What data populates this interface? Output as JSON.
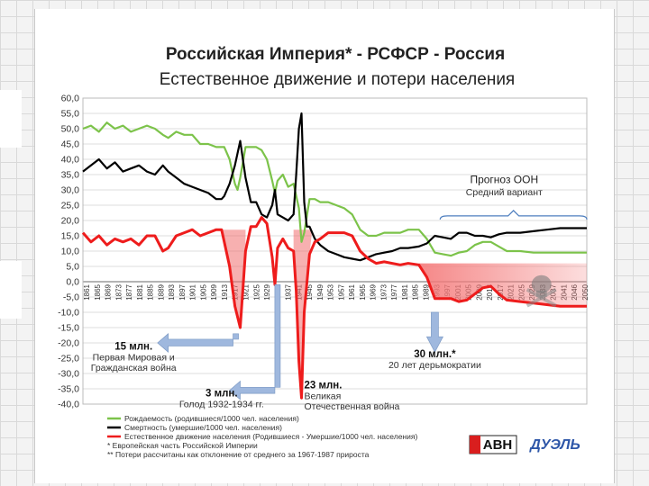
{
  "title": "Российская Империя* - РСФСР - Россия",
  "subtitle": "Естественное движение и потери населения",
  "colors": {
    "births": "#7cc34a",
    "deaths": "#000000",
    "natural": "#ee1c1c",
    "loss": "#f06464",
    "arrow": "#9fb8de",
    "forecast": "#4f7fbf"
  },
  "chart_data": {
    "type": "line",
    "title": "Российская Империя* - РСФСР - Россия",
    "subtitle": "Естественное движение и потери населения",
    "ylim": [
      -40,
      60
    ],
    "ystep": 5,
    "xlim": [
      1861,
      2050
    ],
    "yticks": [
      "60,0",
      "55,0",
      "50,0",
      "45,0",
      "40,0",
      "35,0",
      "30,0",
      "25,0",
      "20,0",
      "15,0",
      "10,0",
      "5,0",
      "0,0",
      "-5,0",
      "-10,0",
      "-15,0",
      "-20,0",
      "-25,0",
      "-30,0",
      "-35,0",
      "-40,0"
    ],
    "xticks": [
      "1861",
      "1865",
      "1869",
      "1873",
      "1877",
      "1881",
      "1885",
      "1889",
      "1893",
      "1897",
      "1901",
      "1905",
      "1909",
      "1913",
      "1917",
      "1921",
      "1925",
      "1929",
      "1933",
      "1937",
      "1941",
      "1945",
      "1949",
      "1953",
      "1957",
      "1961",
      "1965",
      "1969",
      "1973",
      "1977",
      "1981",
      "1985",
      "1989",
      "1993",
      "1997",
      "2001",
      "2005",
      "2009",
      "2013",
      "2017",
      "2021",
      "2025",
      "2029",
      "2033",
      "2037",
      "2041",
      "2046",
      "2050"
    ],
    "series": [
      {
        "name": "Рождаемость (родившиеся/1000 чел. населения)",
        "color": "#7cc34a",
        "x": [
          1861,
          1864,
          1867,
          1870,
          1873,
          1876,
          1879,
          1882,
          1885,
          1888,
          1891,
          1893,
          1896,
          1899,
          1902,
          1905,
          1908,
          1911,
          1913,
          1914,
          1916,
          1918,
          1919,
          1920,
          1922,
          1924,
          1926,
          1928,
          1930,
          1932,
          1933,
          1934,
          1936,
          1938,
          1940,
          1942,
          1943,
          1944,
          1946,
          1948,
          1950,
          1953,
          1956,
          1959,
          1962,
          1965,
          1968,
          1971,
          1974,
          1977,
          1980,
          1983,
          1987,
          1990,
          1993,
          1996,
          1999,
          2002,
          2005,
          2008,
          2011,
          2014,
          2017,
          2020,
          2025,
          2030,
          2035,
          2040,
          2045,
          2050
        ],
        "values": [
          50,
          51,
          49,
          52,
          50,
          51,
          49,
          50,
          51,
          50,
          48,
          47,
          49,
          48,
          48,
          45,
          45,
          44,
          44,
          44,
          40,
          32,
          30,
          34,
          44,
          44,
          44,
          43,
          40,
          33,
          29,
          33,
          35,
          31,
          32,
          24,
          13,
          16,
          27,
          27,
          26,
          26,
          25,
          24,
          22,
          17,
          15,
          15,
          16,
          16,
          16,
          17,
          17,
          14,
          9.5,
          9,
          8.5,
          9.5,
          10,
          12,
          13,
          13,
          11.5,
          10,
          10,
          9.5,
          9.5,
          9.5,
          9.5,
          9.5
        ]
      },
      {
        "name": "Смертность (умершие/1000 чел. населения)",
        "color": "#000000",
        "x": [
          1861,
          1864,
          1867,
          1870,
          1873,
          1876,
          1879,
          1882,
          1885,
          1888,
          1891,
          1893,
          1896,
          1899,
          1902,
          1905,
          1908,
          1911,
          1913,
          1914,
          1915,
          1916,
          1918,
          1920,
          1922,
          1924,
          1926,
          1928,
          1930,
          1932,
          1933,
          1934,
          1936,
          1938,
          1940,
          1941,
          1942,
          1943,
          1944,
          1945,
          1946,
          1948,
          1950,
          1953,
          1956,
          1959,
          1962,
          1965,
          1968,
          1971,
          1974,
          1977,
          1980,
          1983,
          1987,
          1990,
          1993,
          1996,
          1999,
          2002,
          2005,
          2008,
          2011,
          2014,
          2017,
          2020,
          2025,
          2030,
          2035,
          2040,
          2045,
          2050
        ],
        "values": [
          36,
          38,
          40,
          37,
          39,
          36,
          37,
          38,
          36,
          35,
          38,
          36,
          34,
          32,
          31,
          30,
          29,
          27,
          27,
          28,
          30,
          32,
          38,
          46,
          34,
          26,
          26,
          22,
          21,
          25,
          30,
          22,
          21,
          20,
          22,
          35,
          50,
          55,
          26,
          18,
          18,
          14,
          12,
          10,
          9,
          8,
          7.5,
          7,
          8,
          9,
          9.5,
          10,
          11,
          11,
          11.5,
          12.5,
          15,
          14.5,
          14,
          16,
          16,
          15,
          15,
          14.5,
          15.5,
          16,
          16,
          16.5,
          17,
          17.5,
          17.5,
          17.5
        ]
      },
      {
        "name": "Естественное движение населения (Родившиеся - Умершие/1000 чел. населения)",
        "color": "#ee1c1c",
        "x": [
          1861,
          1864,
          1867,
          1870,
          1873,
          1876,
          1879,
          1882,
          1885,
          1888,
          1891,
          1893,
          1896,
          1899,
          1902,
          1905,
          1908,
          1911,
          1913,
          1914,
          1916,
          1918,
          1920,
          1922,
          1924,
          1926,
          1928,
          1930,
          1932,
          1933,
          1934,
          1936,
          1938,
          1940,
          1941,
          1942,
          1943,
          1944,
          1946,
          1948,
          1950,
          1953,
          1956,
          1959,
          1962,
          1965,
          1968,
          1971,
          1974,
          1977,
          1980,
          1983,
          1987,
          1990,
          1993,
          1996,
          1999,
          2002,
          2005,
          2008,
          2011,
          2014,
          2017,
          2020,
          2025,
          2030,
          2035,
          2040,
          2045,
          2050
        ],
        "values": [
          16,
          13,
          15,
          12,
          14,
          13,
          14,
          12,
          15,
          15,
          10,
          11,
          15,
          16,
          17,
          15,
          16,
          17,
          17,
          13,
          5,
          -8,
          -15,
          10,
          18,
          18,
          21,
          19,
          8,
          -1,
          11,
          14,
          11,
          10,
          -3,
          -26,
          -38,
          -10,
          9,
          13,
          14,
          16,
          16,
          16,
          15,
          10,
          7.5,
          6,
          6.5,
          6,
          5.5,
          6,
          5.5,
          1.5,
          -5.5,
          -5.5,
          -5.5,
          -6.5,
          -6,
          -4,
          -2,
          -1.5,
          -4,
          -6,
          -6.5,
          -7,
          -7.5,
          -8,
          -8,
          -8
        ]
      }
    ],
    "losses": [
      {
        "label": "15 млн.",
        "desc": [
          "Первая Мировая и",
          "Гражданская война"
        ]
      },
      {
        "label": "3 млн.",
        "desc": [
          "Голод 1932-1934 гг."
        ]
      },
      {
        "label": "23 млн.",
        "desc": [
          "Великая",
          "Отечественная война"
        ]
      },
      {
        "label": "30 млн.*",
        "desc": [
          "20 лет дерьмократии"
        ]
      }
    ],
    "forecast": {
      "title": "Прогноз ООН",
      "subtitle": "Средний вариант"
    },
    "legend": [
      "Рождаемость (родившиеся/1000 чел. населения)",
      "Смертность (умершие/1000 чел. населения)",
      "Естественное движение населения (Родившиеся - Умершие/1000 чел. населения)"
    ],
    "notes": [
      "*  Европейская часть Российской Империи",
      "** Потери рассчитаны как отклонение от среднего за 1967-1987 прироста"
    ]
  },
  "logos": {
    "avn": "АВН",
    "duel": "ДУЭЛЬ"
  }
}
